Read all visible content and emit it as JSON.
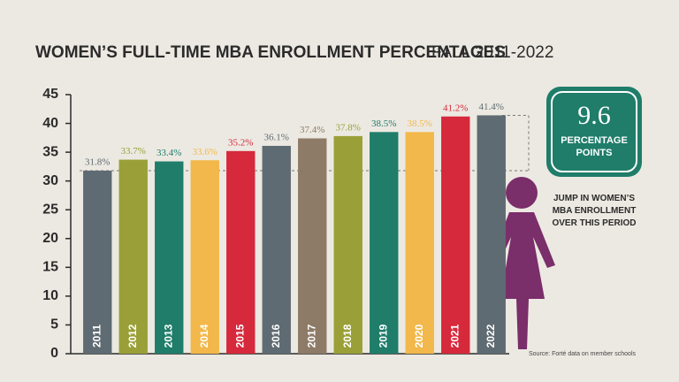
{
  "chart_data": {
    "type": "bar",
    "title": "WOMEN’S FULL-TIME MBA ENROLLMENT PERCENTAGES",
    "subtitle": "FALL 2011-2022",
    "categories": [
      "2011",
      "2012",
      "2013",
      "2014",
      "2015",
      "2016",
      "2017",
      "2018",
      "2019",
      "2020",
      "2021",
      "2022"
    ],
    "values": [
      31.8,
      33.7,
      33.4,
      33.6,
      35.2,
      36.1,
      37.4,
      37.8,
      38.5,
      38.5,
      41.2,
      41.4
    ],
    "value_labels": [
      "31.8%",
      "33.7%",
      "33.4%",
      "33.6%",
      "35.2%",
      "36.1%",
      "37.4%",
      "37.8%",
      "38.5%",
      "38.5%",
      "41.2%",
      "41.4%"
    ],
    "colors": [
      "#5f6b72",
      "#9aa037",
      "#1f7d6a",
      "#f2b84b",
      "#d6293b",
      "#5f6b72",
      "#8e7b67",
      "#9aa037",
      "#1f7d6a",
      "#f2b84b",
      "#d6293b",
      "#5f6b72"
    ],
    "ylim": [
      0,
      45
    ],
    "yticks": [
      0,
      5,
      10,
      15,
      20,
      25,
      30,
      35,
      40,
      45
    ],
    "grid": false,
    "annotations": {
      "badge_value": "9.6",
      "badge_text": "PERCENTAGE POINTS",
      "caption": "JUMP IN WOMEN’S MBA ENROLLMENT OVER THIS PERIOD",
      "source": "Source: Forté data on member schools"
    }
  }
}
